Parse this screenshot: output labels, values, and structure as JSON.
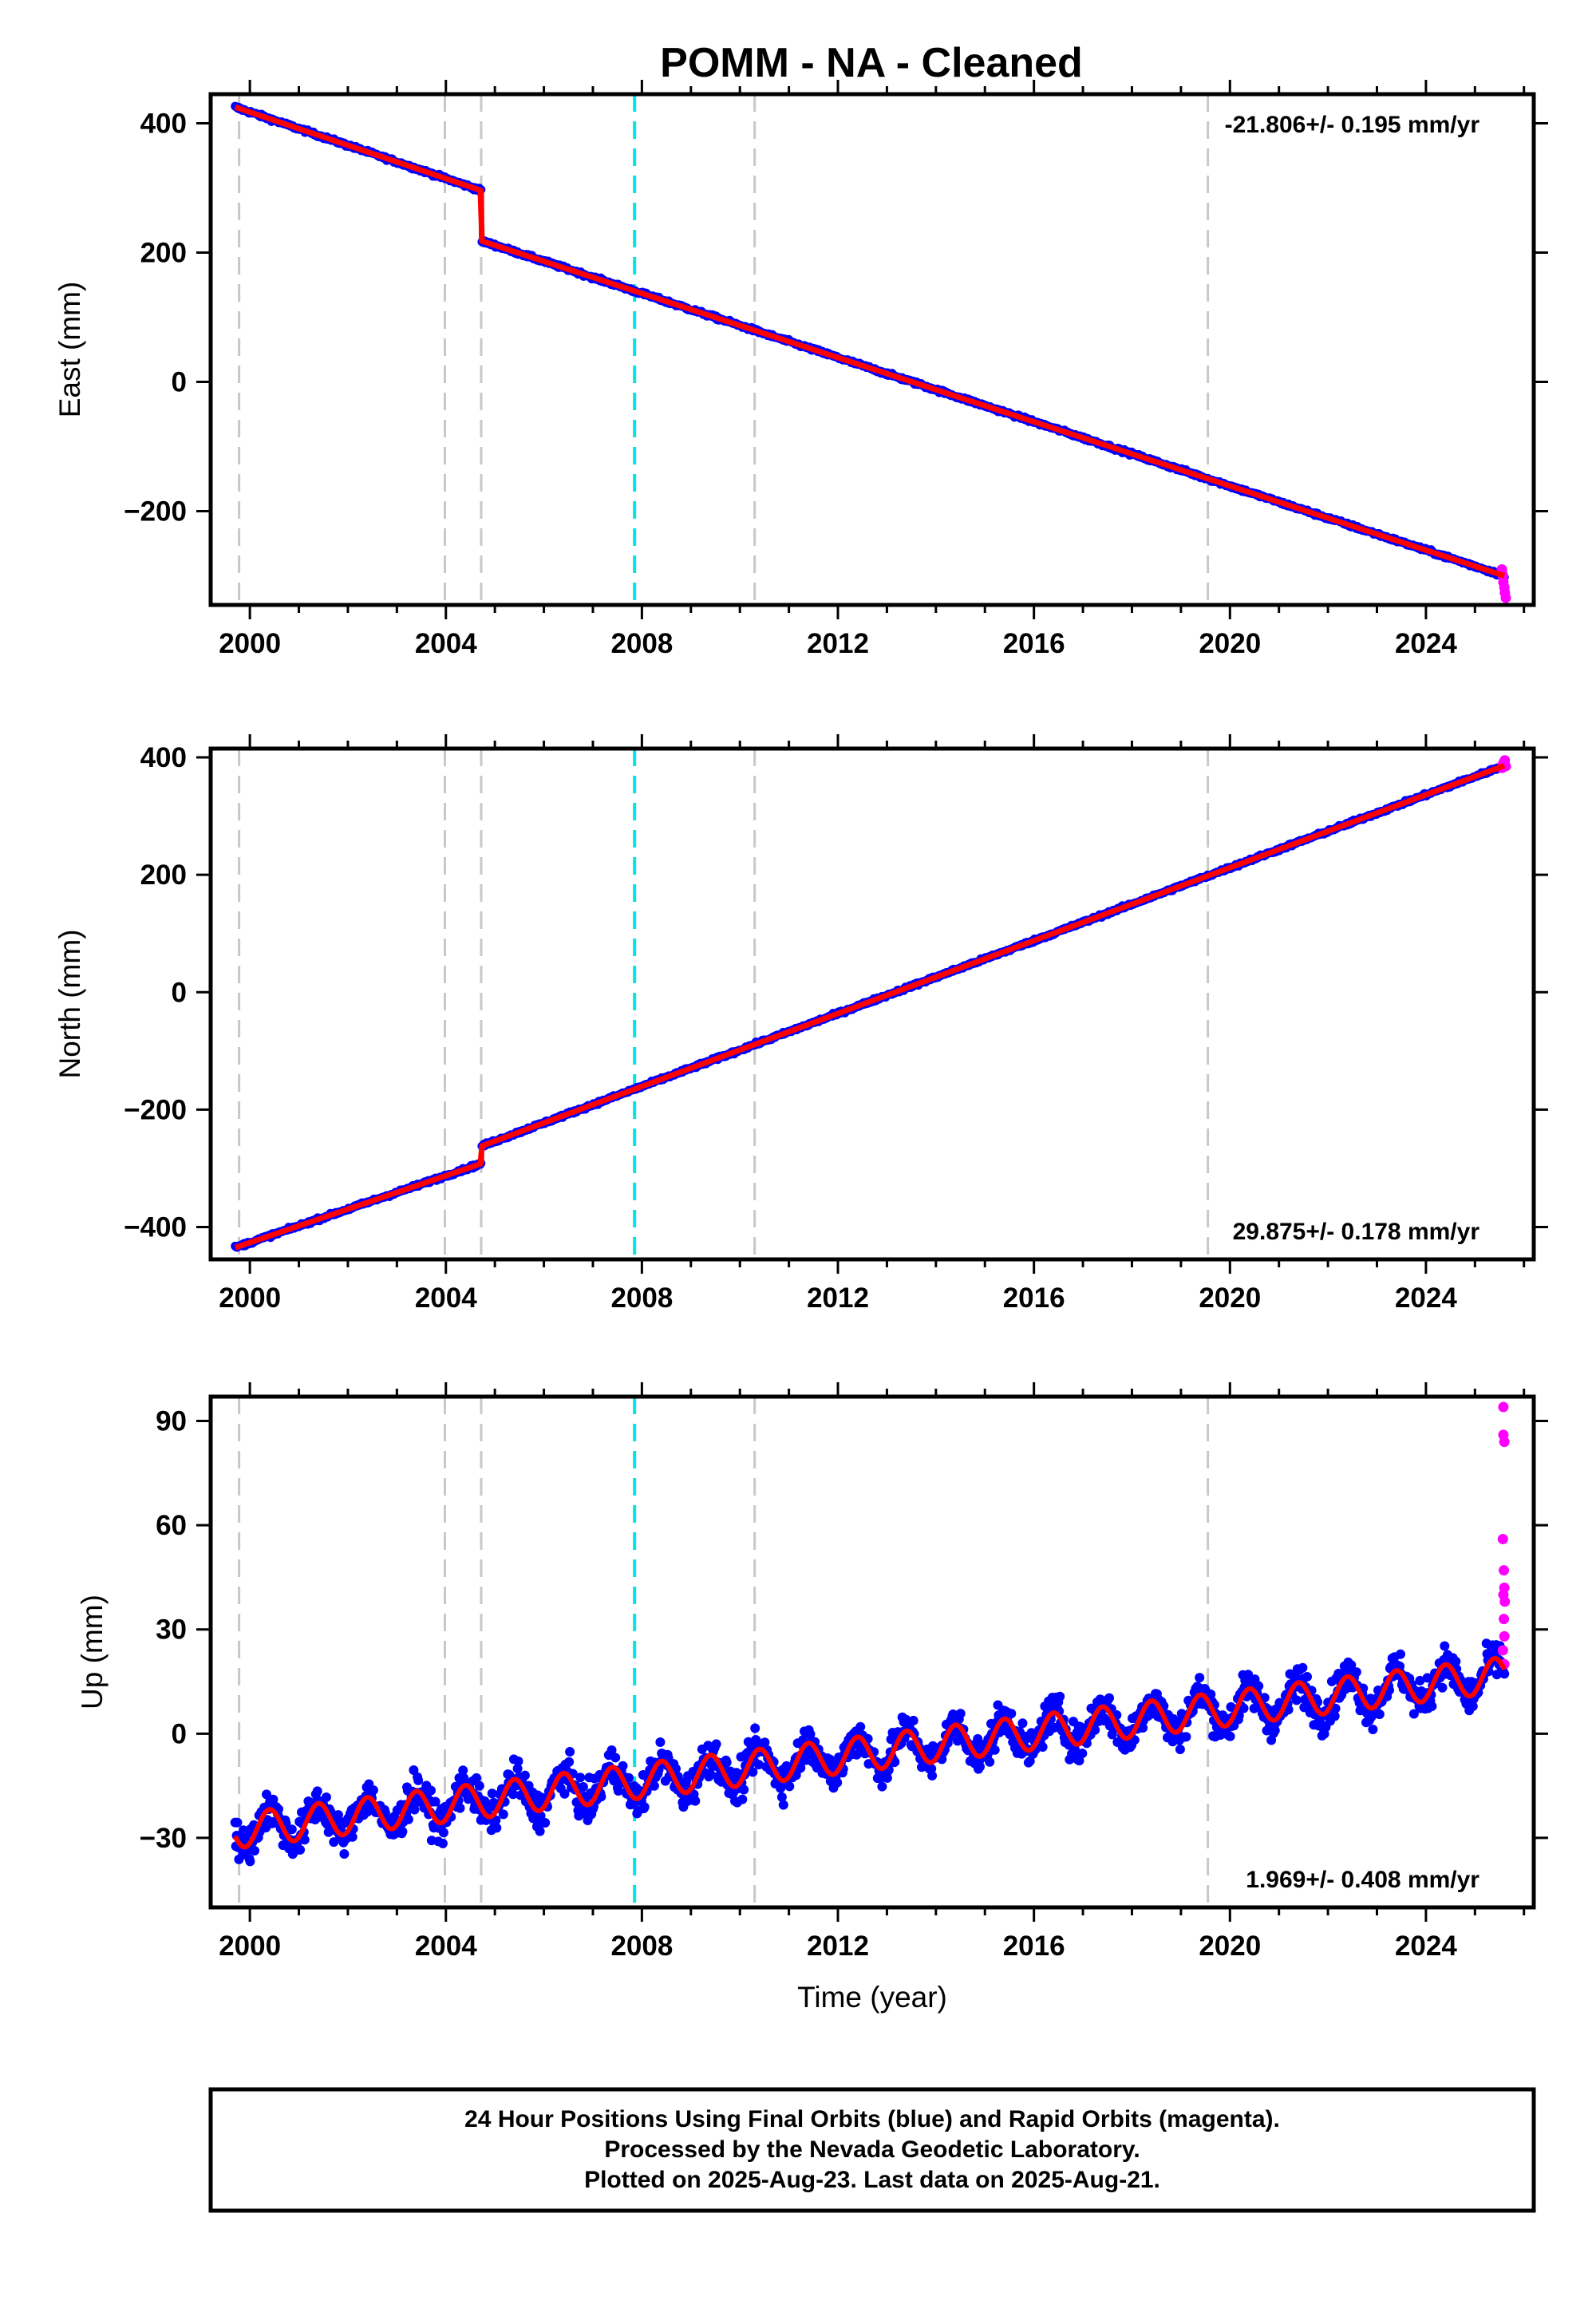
{
  "title": "POMM  - NA - Cleaned",
  "colors": {
    "final_orbits": "#0000ff",
    "rapid_orbits": "#ff00ff",
    "model": "#ff0000",
    "vline_gray": "#c8c8c8",
    "vline_cyan": "#00e5e5"
  },
  "footer": {
    "line1": "24 Hour Positions Using Final Orbits (blue) and Rapid Orbits (magenta).",
    "line2": "Processed by the Nevada Geodetic Laboratory.",
    "line3": "Plotted on 2025-Aug-23. Last data on 2025-Aug-21."
  },
  "chart_data": [
    {
      "type": "scatter",
      "component": "east",
      "ylabel": "East (mm)",
      "xlabel": "",
      "xlim": [
        1999.2,
        2026.2
      ],
      "ylim": [
        -345,
        445
      ],
      "xticks": [
        2000,
        2004,
        2008,
        2012,
        2016,
        2020,
        2024
      ],
      "yticks": [
        400,
        200,
        0,
        -200
      ],
      "rate_label": "-21.806+/- 0.195 mm/yr",
      "rate_position": "top-right",
      "vlines_gray": [
        1999.78,
        2003.98,
        2004.72,
        2010.3,
        2019.55
      ],
      "vlines_cyan": [
        2007.85
      ],
      "model_trend": [
        {
          "x": 1999.7,
          "y": 425
        },
        {
          "x": 2004.72,
          "y": 296
        },
        {
          "x": 2004.73,
          "y": 218
        },
        {
          "x": 2025.6,
          "y": -300
        }
      ],
      "rapid_points": [
        {
          "x": 2025.55,
          "y": -290
        },
        {
          "x": 2025.57,
          "y": -300
        },
        {
          "x": 2025.58,
          "y": -310
        },
        {
          "x": 2025.6,
          "y": -318
        },
        {
          "x": 2025.61,
          "y": -326
        },
        {
          "x": 2025.63,
          "y": -334
        }
      ]
    },
    {
      "type": "scatter",
      "component": "north",
      "ylabel": "North (mm)",
      "xlabel": "",
      "xlim": [
        1999.2,
        2026.2
      ],
      "ylim": [
        -455,
        415
      ],
      "xticks": [
        2000,
        2004,
        2008,
        2012,
        2016,
        2020,
        2024
      ],
      "yticks": [
        400,
        200,
        0,
        -200,
        -400
      ],
      "rate_label": "29.875+/- 0.178 mm/yr",
      "rate_position": "bottom-right",
      "vlines_gray": [
        1999.78,
        2003.98,
        2004.72,
        2010.3,
        2019.55
      ],
      "vlines_cyan": [
        2007.85
      ],
      "model_trend": [
        {
          "x": 1999.7,
          "y": -435
        },
        {
          "x": 2004.72,
          "y": -292
        },
        {
          "x": 2004.73,
          "y": -262
        },
        {
          "x": 2025.6,
          "y": 386
        }
      ],
      "rapid_points": [
        {
          "x": 2025.55,
          "y": 382
        },
        {
          "x": 2025.57,
          "y": 388
        },
        {
          "x": 2025.59,
          "y": 392
        },
        {
          "x": 2025.61,
          "y": 395
        },
        {
          "x": 2025.63,
          "y": 385
        }
      ]
    },
    {
      "type": "scatter",
      "component": "up",
      "ylabel": "Up (mm)",
      "xlabel": "Time (year)",
      "xlim": [
        1999.2,
        2026.2
      ],
      "ylim": [
        -50,
        97
      ],
      "xticks": [
        2000,
        2004,
        2008,
        2012,
        2016,
        2020,
        2024
      ],
      "yticks": [
        90,
        60,
        30,
        0,
        -30
      ],
      "rate_label": "1.969+/- 0.408 mm/yr",
      "rate_position": "bottom-right",
      "vlines_gray": [
        1999.78,
        2003.98,
        2004.72,
        2010.3,
        2019.55
      ],
      "vlines_cyan": [
        2007.85
      ],
      "model_trend": [
        {
          "x": 1999.7,
          "y": -28
        },
        {
          "x": 2025.6,
          "y": 17
        }
      ],
      "seasonal_amplitude_mm": 5,
      "rapid_points": [
        {
          "x": 2025.58,
          "y": 94
        },
        {
          "x": 2025.58,
          "y": 86
        },
        {
          "x": 2025.6,
          "y": 84
        },
        {
          "x": 2025.57,
          "y": 56
        },
        {
          "x": 2025.59,
          "y": 47
        },
        {
          "x": 2025.6,
          "y": 42
        },
        {
          "x": 2025.58,
          "y": 40
        },
        {
          "x": 2025.61,
          "y": 38
        },
        {
          "x": 2025.59,
          "y": 33
        },
        {
          "x": 2025.6,
          "y": 28
        },
        {
          "x": 2025.57,
          "y": 24
        },
        {
          "x": 2025.6,
          "y": 20
        }
      ]
    }
  ]
}
